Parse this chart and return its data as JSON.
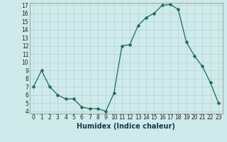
{
  "x": [
    0,
    1,
    2,
    3,
    4,
    5,
    6,
    7,
    8,
    9,
    10,
    11,
    12,
    13,
    14,
    15,
    16,
    17,
    18,
    19,
    20,
    21,
    22,
    23
  ],
  "y": [
    7,
    9,
    7,
    6,
    5.5,
    5.5,
    4.5,
    4.3,
    4.3,
    4.0,
    6.2,
    12.0,
    12.2,
    14.5,
    15.5,
    16.0,
    17.0,
    17.1,
    16.5,
    12.5,
    10.8,
    9.5,
    7.5,
    5.0
  ],
  "xlabel": "Humidex (Indice chaleur)",
  "ylim_min": 4,
  "ylim_max": 17,
  "xlim_min": -0.5,
  "xlim_max": 23.5,
  "yticks": [
    4,
    5,
    6,
    7,
    8,
    9,
    10,
    11,
    12,
    13,
    14,
    15,
    16,
    17
  ],
  "xticks": [
    0,
    1,
    2,
    3,
    4,
    5,
    6,
    7,
    8,
    9,
    10,
    11,
    12,
    13,
    14,
    15,
    16,
    17,
    18,
    19,
    20,
    21,
    22,
    23
  ],
  "line_color": "#1a6b5a",
  "marker": "D",
  "marker_size": 2.5,
  "bg_color": "#ceeaea",
  "grid_color": "#b0cccc",
  "tick_fontsize": 5.5,
  "xlabel_fontsize": 7,
  "xlabel_fontweight": "bold",
  "xlabel_color": "#1a3a4a",
  "spine_color": "#888888",
  "spine_linewidth": 0.5,
  "line_width": 0.9
}
